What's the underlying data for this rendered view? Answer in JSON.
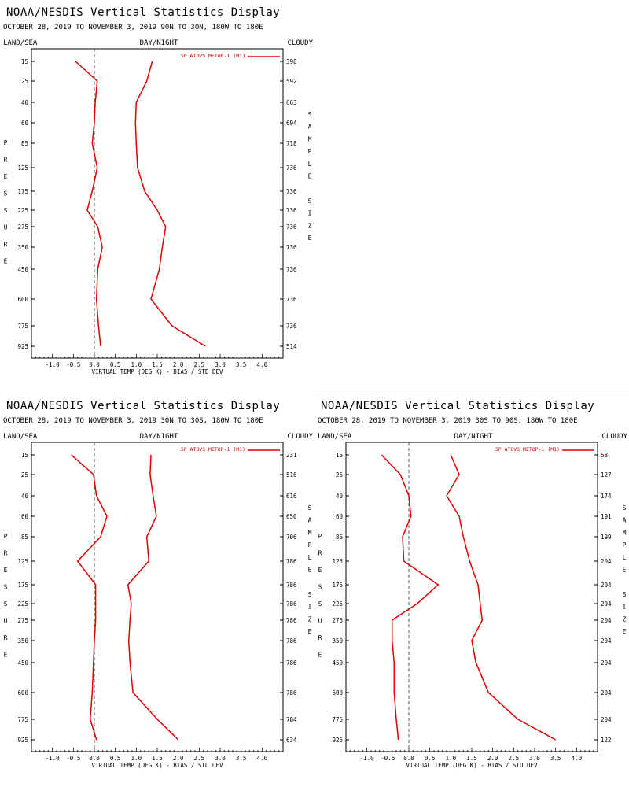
{
  "colors": {
    "series": "#dd0000",
    "axis": "#000000",
    "zero_line": "#555555",
    "divider": "#999999"
  },
  "header": {
    "title": "NOAA/NESDIS Vertical Statistics Display",
    "land_sea": "LAND/SEA",
    "day_night": "DAY/NIGHT",
    "cloudy": "CLOUDY",
    "xlabel": "VIRTUAL TEMP (DEG K) - BIAS / STD DEV",
    "legend": "SP ATOVS METOP-1 (M1)",
    "left_axis_title": [
      "P",
      "R",
      "E",
      "S",
      "S",
      "U",
      "R",
      "E"
    ],
    "right_axis_title": [
      "S",
      "A",
      "M",
      "P",
      "L",
      "E",
      " ",
      "S",
      "I",
      "Z",
      "E"
    ]
  },
  "pressure_levels": [
    "15",
    "25",
    "40",
    "60",
    "85",
    "125",
    "175",
    "225",
    "275",
    "350",
    "450",
    "600",
    "775",
    "925"
  ],
  "x_ticks": [
    "-1.0",
    "-0.5",
    "0.0",
    "0.5",
    "1.0",
    "1.5",
    "2.0",
    "2.5",
    "3.0",
    "3.5",
    "4.0"
  ],
  "panels": [
    {
      "subtitle": "OCTOBER 28, 2019 TO NOVEMBER 3, 2019  90N TO 30N, 180W TO 180E",
      "sample_sizes": [
        "398",
        "592",
        "663",
        "694",
        "718",
        "736",
        "736",
        "736",
        "736",
        "736",
        "736",
        "736",
        "736",
        "514"
      ]
    },
    {
      "subtitle": "OCTOBER 28, 2019 TO NOVEMBER 3, 2019  30N TO 30S, 180W TO 180E",
      "sample_sizes": [
        "231",
        "516",
        "616",
        "650",
        "706",
        "786",
        "786",
        "786",
        "786",
        "786",
        "786",
        "786",
        "784",
        "634"
      ]
    },
    {
      "subtitle": "OCTOBER 28, 2019 TO NOVEMBER 3, 2019  30S TO 90S, 180W TO 180E",
      "sample_sizes": [
        "58",
        "127",
        "174",
        "191",
        "199",
        "204",
        "204",
        "204",
        "204",
        "204",
        "204",
        "204",
        "204",
        "122"
      ]
    }
  ],
  "chart_data": [
    {
      "type": "line",
      "region": "90N TO 30N",
      "ylabel": "PRESSURE",
      "xlabel": "VIRTUAL TEMP (DEG K) - BIAS / STD DEV",
      "y_pressure": [
        15,
        25,
        40,
        60,
        85,
        125,
        175,
        225,
        275,
        350,
        450,
        600,
        775,
        925
      ],
      "xlim": [
        -1.5,
        4.5
      ],
      "series": [
        {
          "name": "BIAS",
          "values": [
            -0.45,
            0.07,
            0.02,
            0.0,
            -0.05,
            0.07,
            -0.05,
            -0.17,
            0.08,
            0.19,
            0.08,
            0.05,
            0.1,
            0.15
          ]
        },
        {
          "name": "STD DEV",
          "values": [
            1.38,
            1.25,
            1.0,
            0.98,
            1.0,
            1.03,
            1.2,
            1.5,
            1.7,
            1.62,
            1.55,
            1.35,
            1.85,
            2.65
          ]
        }
      ]
    },
    {
      "type": "line",
      "region": "30N TO 30S",
      "ylabel": "PRESSURE",
      "xlabel": "VIRTUAL TEMP (DEG K) - BIAS / STD DEV",
      "y_pressure": [
        15,
        25,
        40,
        60,
        85,
        125,
        175,
        225,
        275,
        350,
        450,
        600,
        775,
        925
      ],
      "xlim": [
        -1.5,
        4.5
      ],
      "series": [
        {
          "name": "BIAS",
          "values": [
            -0.55,
            -0.02,
            0.05,
            0.3,
            0.15,
            -0.4,
            0.03,
            0.03,
            0.03,
            0.0,
            -0.02,
            -0.05,
            -0.1,
            0.05
          ]
        },
        {
          "name": "STD DEV",
          "values": [
            1.35,
            1.33,
            1.4,
            1.48,
            1.25,
            1.3,
            0.8,
            0.88,
            0.85,
            0.82,
            0.85,
            0.92,
            1.5,
            2.0
          ]
        }
      ]
    },
    {
      "type": "line",
      "region": "30S TO 90S",
      "ylabel": "PRESSURE",
      "xlabel": "VIRTUAL TEMP (DEG K) - BIAS / STD DEV",
      "y_pressure": [
        15,
        25,
        40,
        60,
        85,
        125,
        175,
        225,
        275,
        350,
        450,
        600,
        775,
        925
      ],
      "xlim": [
        -1.5,
        4.5
      ],
      "series": [
        {
          "name": "BIAS",
          "values": [
            -0.65,
            -0.2,
            0.0,
            0.05,
            -0.15,
            -0.12,
            0.7,
            0.2,
            -0.4,
            -0.4,
            -0.35,
            -0.35,
            -0.3,
            -0.25
          ]
        },
        {
          "name": "STD DEV",
          "values": [
            1.0,
            1.2,
            0.9,
            1.2,
            1.3,
            1.45,
            1.65,
            1.7,
            1.75,
            1.5,
            1.6,
            1.9,
            2.6,
            3.5
          ]
        }
      ]
    }
  ]
}
